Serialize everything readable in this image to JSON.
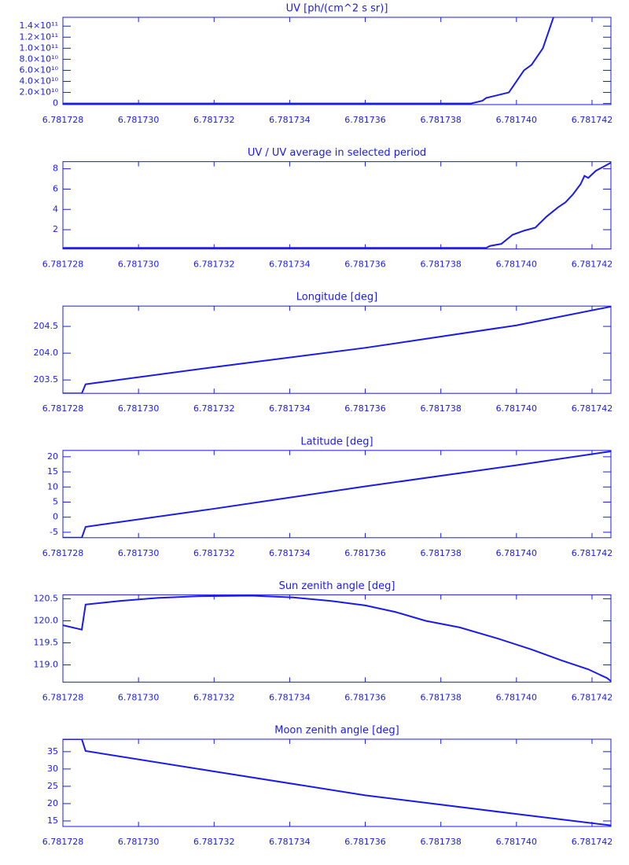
{
  "chart_data": [
    {
      "type": "line",
      "title": "UV [ph/(cm^2 s sr)]",
      "color": "#1a1aeb",
      "x": [
        6.781728,
        6.781732,
        6.781736,
        6.7817388,
        6.7817391,
        6.7817392,
        6.7817395,
        6.7817398,
        6.7817399,
        6.7817401,
        6.7817402,
        6.7817404,
        6.7817405,
        6.7817407,
        6.7817408,
        6.781741
      ],
      "values": [
        0,
        0,
        0,
        0,
        5000000000,
        10000000000,
        15000000000,
        20000000000,
        30000000000,
        50000000000,
        60000000000,
        70000000000,
        80000000000,
        100000000000,
        120000000000,
        160000000000
      ],
      "xlim": [
        6.781728,
        6.7817425
      ],
      "xticks": [
        6.781728,
        {
          "value": 6.78173,
          "label": "6.781730"
        },
        6.781732,
        6.781734,
        6.781736,
        6.781738,
        {
          "value": 6.78174,
          "label": "6.781740"
        },
        6.781742
      ],
      "ylim": [
        -2000000000,
        156000000000
      ],
      "yticks": [
        0,
        {
          "value": 20000000000,
          "label": "2.0×10¹⁰"
        },
        {
          "value": 40000000000,
          "label": "4.0×10¹⁰"
        },
        {
          "value": 60000000000,
          "label": "6.0×10¹⁰"
        },
        {
          "value": 80000000000,
          "label": "8.0×10¹⁰"
        },
        {
          "value": 100000000000,
          "label": "1.0×10¹¹"
        },
        {
          "value": 120000000000,
          "label": "1.2×10¹¹"
        },
        {
          "value": 140000000000,
          "label": "1.4×10¹¹"
        }
      ]
    },
    {
      "type": "line",
      "title": "UV / UV average in selected period",
      "color": "#1a1aeb",
      "x": [
        6.781728,
        6.781732,
        6.781736,
        6.7817392,
        6.7817393,
        6.7817396,
        6.7817399,
        6.7817402,
        6.7817405,
        6.7817408,
        6.7817411,
        6.7817413,
        6.7817415,
        6.7817417,
        6.7817418,
        6.7817419,
        6.7817421,
        6.7817425
      ],
      "values": [
        0.2,
        0.2,
        0.2,
        0.2,
        0.4,
        0.6,
        1.5,
        1.9,
        2.2,
        3.3,
        4.2,
        4.7,
        5.5,
        6.5,
        7.3,
        7.1,
        7.8,
        8.6
      ],
      "xlim": [
        6.781728,
        6.7817425
      ],
      "xticks": [
        6.781728,
        {
          "value": 6.78173,
          "label": "6.781730"
        },
        6.781732,
        6.781734,
        6.781736,
        6.781738,
        {
          "value": 6.78174,
          "label": "6.781740"
        },
        6.781742
      ],
      "ylim": [
        0.1,
        8.7
      ],
      "yticks": [
        2,
        4,
        6,
        8
      ]
    },
    {
      "type": "line",
      "title": "Longitude [deg]",
      "color": "#1a1aeb",
      "x": [
        6.781728,
        6.7817285,
        6.7817286,
        6.781732,
        6.781736,
        6.78174,
        6.7817425
      ],
      "values": [
        203.25,
        203.25,
        203.42,
        203.74,
        204.1,
        204.52,
        204.87
      ],
      "xlim": [
        6.781728,
        6.7817425
      ],
      "xticks": [
        6.781728,
        {
          "value": 6.78173,
          "label": "6.781730"
        },
        6.781732,
        6.781734,
        6.781736,
        6.781738,
        {
          "value": 6.78174,
          "label": "6.781740"
        },
        6.781742
      ],
      "ylim": [
        203.25,
        204.88
      ],
      "yticks": [
        203.5,
        {
          "value": 204,
          "label": "204.0"
        },
        204.5
      ]
    },
    {
      "type": "line",
      "title": "Latitude [deg]",
      "color": "#1a1aeb",
      "x": [
        6.781728,
        6.7817285,
        6.7817286,
        6.781732,
        6.781736,
        6.78174,
        6.7817425
      ],
      "values": [
        -6.8,
        -6.8,
        -3.2,
        2.8,
        10.2,
        17.2,
        21.8
      ],
      "xlim": [
        6.781728,
        6.7817425
      ],
      "xticks": [
        6.781728,
        {
          "value": 6.78173,
          "label": "6.781730"
        },
        6.781732,
        6.781734,
        6.781736,
        6.781738,
        {
          "value": 6.78174,
          "label": "6.781740"
        },
        6.781742
      ],
      "ylim": [
        -6.8,
        22.1
      ],
      "yticks": [
        -5,
        0,
        5,
        10,
        15,
        20
      ]
    },
    {
      "type": "line",
      "title": "Sun zenith angle [deg]",
      "color": "#1a1aeb",
      "x": [
        6.781728,
        6.7817285,
        6.7817286,
        6.7817295,
        6.7817305,
        6.7817316,
        6.781733,
        6.7817341,
        6.7817351,
        6.781736,
        6.7817368,
        6.7817376,
        6.7817385,
        6.7817395,
        6.7817404,
        6.7817412,
        6.7817419,
        6.7817424,
        6.7817425
      ],
      "values": [
        119.9,
        119.8,
        120.37,
        120.45,
        120.52,
        120.56,
        120.57,
        120.53,
        120.45,
        120.35,
        120.2,
        120.0,
        119.85,
        119.6,
        119.35,
        119.1,
        118.9,
        118.7,
        118.63
      ],
      "xlim": [
        6.781728,
        6.7817425
      ],
      "xticks": [
        6.781728,
        {
          "value": 6.78173,
          "label": "6.781730"
        },
        6.781732,
        6.781734,
        6.781736,
        6.781738,
        {
          "value": 6.78174,
          "label": "6.781740"
        },
        6.781742
      ],
      "ylim": [
        118.61,
        120.59
      ],
      "yticks": [
        {
          "value": 119,
          "label": "119.0"
        },
        119.5,
        {
          "value": 120,
          "label": "120.0"
        },
        120.5
      ]
    },
    {
      "type": "line",
      "title": "Moon zenith angle [deg]",
      "color": "#1a1aeb",
      "x": [
        6.781728,
        6.7817285,
        6.7817286,
        6.781732,
        6.781736,
        6.78174,
        6.7817425
      ],
      "values": [
        38.6,
        38.6,
        35.2,
        29.3,
        22.4,
        17.0,
        13.7
      ],
      "xlim": [
        6.781728,
        6.7817425
      ],
      "xticks": [
        6.781728,
        {
          "value": 6.78173,
          "label": "6.781730"
        },
        6.781732,
        6.781734,
        6.781736,
        6.781738,
        {
          "value": 6.78174,
          "label": "6.781740"
        },
        6.781742
      ],
      "ylim": [
        13.4,
        38.6
      ],
      "yticks": [
        15,
        20,
        25,
        30,
        35
      ]
    }
  ]
}
